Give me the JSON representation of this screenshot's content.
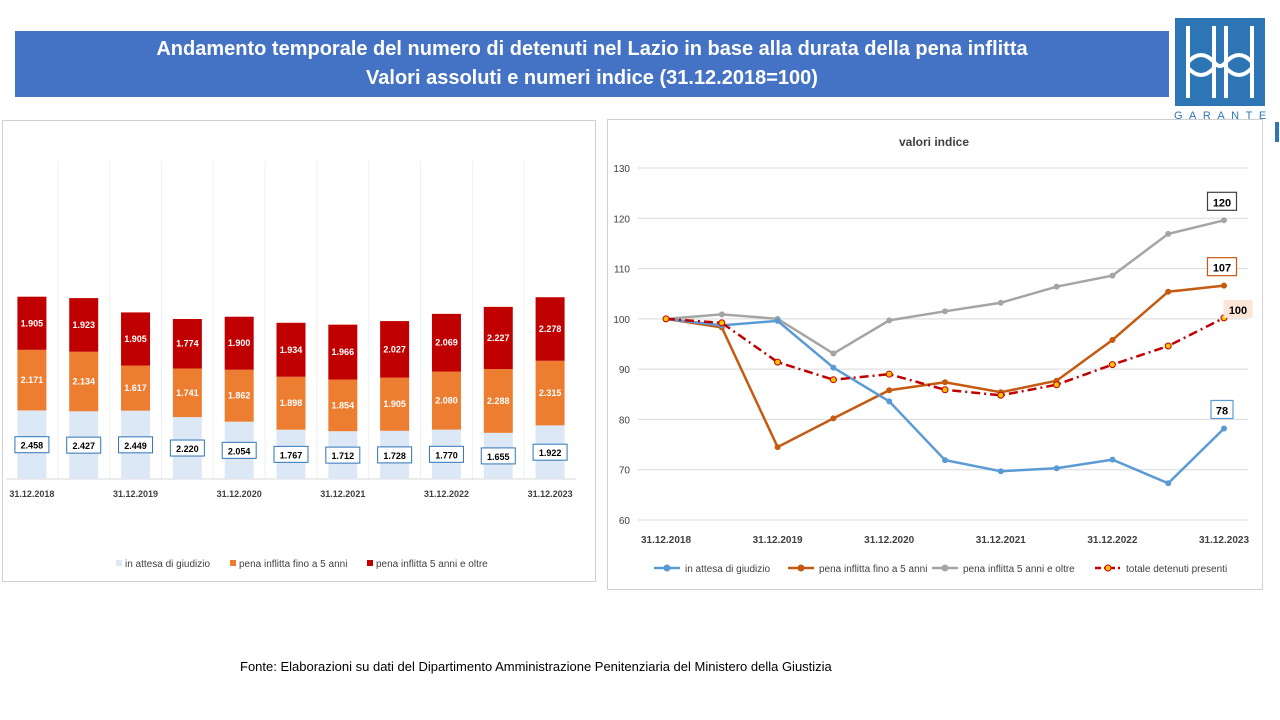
{
  "title": {
    "line1": "Andamento temporale del numero di detenuti nel Lazio in base alla durata della pena inflitta",
    "line2": "Valori assoluti e numeri indice (31.12.2018=100)"
  },
  "logo_text": "GARANTE",
  "source": "Fonte:  Elaborazioni su dati del Dipartimento  Amministrazione Penitenziaria del Ministero della Giustizia",
  "colors": {
    "banner": "#4472c4",
    "attesa_bar": "#dde8f6",
    "fino5_bar": "#ed7d31",
    "oltre5_bar": "#c00000",
    "attesa_line": "#5b9bd5",
    "fino5_line": "#c55a11",
    "oltre5_line": "#a5a5a5",
    "totale_line": "#c00000"
  },
  "chart_data": [
    {
      "type": "bar",
      "stacked": true,
      "categories": [
        "31.12.2018",
        "",
        "31.12.2019",
        "",
        "31.12.2020",
        "",
        "31.12.2021",
        "",
        "31.12.2022",
        "",
        "31.12.2023"
      ],
      "series": [
        {
          "name": "in attesa di  giudizio",
          "values": [
            2458,
            2427,
            2449,
            2220,
            2054,
            1767,
            1712,
            1728,
            1770,
            1655,
            1922
          ],
          "labels": [
            "2.458",
            "2.427",
            "2.449",
            "2.220",
            "2.054",
            "1.767",
            "1.712",
            "1.728",
            "1.770",
            "1.655",
            "1.922"
          ]
        },
        {
          "name": "pena inflitta fino a 5 anni",
          "values": [
            2171,
            2134,
            1617,
            1741,
            1862,
            1898,
            1854,
            1905,
            2080,
            2288,
            2315
          ],
          "labels": [
            "2.171",
            "2.134",
            "1.617",
            "1.741",
            "1.862",
            "1.898",
            "1.854",
            "1.905",
            "2.080",
            "2.288",
            "2.315"
          ]
        },
        {
          "name": "pena inflitta 5 anni e oltre",
          "values": [
            1905,
            1923,
            1905,
            1774,
            1900,
            1934,
            1966,
            2027,
            2069,
            2227,
            2278
          ],
          "labels": [
            "1.905",
            "1.923",
            "1.905",
            "1.774",
            "1.900",
            "1.934",
            "1.966",
            "2.027",
            "2.069",
            "2.227",
            "2.278"
          ]
        }
      ],
      "grid": false,
      "legend": "bottom"
    },
    {
      "type": "line",
      "title": "valori indice",
      "categories": [
        "31.12.2018",
        "",
        "31.12.2019",
        "",
        "31.12.2020",
        "",
        "31.12.2021",
        "",
        "31.12.2022",
        "",
        "31.12.2023"
      ],
      "yticks": [
        "60",
        "70",
        "80",
        "90",
        "100",
        "110",
        "120",
        "130"
      ],
      "ylim": [
        60,
        130
      ],
      "grid": true,
      "legend": "bottom",
      "series": [
        {
          "name": "in attesa di giudizio",
          "values": [
            100,
            98.7,
            99.6,
            90.3,
            83.6,
            71.9,
            69.7,
            70.3,
            72.0,
            67.3,
            78.2
          ],
          "end_label": "78"
        },
        {
          "name": "pena inflitta fino a 5 anni",
          "values": [
            100,
            98.3,
            74.5,
            80.2,
            85.8,
            87.4,
            85.4,
            87.7,
            95.8,
            105.4,
            106.6
          ],
          "end_label": "107"
        },
        {
          "name": "pena inflitta 5 anni e oltre",
          "values": [
            100,
            100.9,
            100.0,
            93.1,
            99.7,
            101.5,
            103.2,
            106.4,
            108.6,
            116.9,
            119.6
          ],
          "end_label": "120"
        },
        {
          "name": "totale detenuti presenti",
          "values": [
            100,
            99.2,
            91.4,
            87.9,
            89.0,
            85.9,
            84.8,
            86.9,
            90.9,
            94.6,
            100.2
          ],
          "end_label": "100"
        }
      ]
    }
  ]
}
